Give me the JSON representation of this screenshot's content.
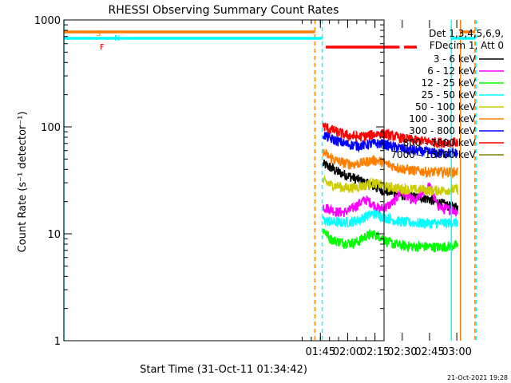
{
  "chart_data": {
    "type": "line",
    "title": "RHESSI Observing Summary Count Rates",
    "xlabel": "Start Time (31-Oct-11 01:34:42)",
    "ylabel": "Count Rate (s⁻¹ detector⁻¹)",
    "y_scale": "log",
    "ylim": [
      1,
      1000
    ],
    "y_ticks": [
      {
        "value": 1,
        "label": "1"
      },
      {
        "value": 10,
        "label": "10"
      },
      {
        "value": 100,
        "label": "100"
      },
      {
        "value": 1000,
        "label": "1000"
      }
    ],
    "x_range_minutes": [
      -36,
      140
    ],
    "x_ticks": [
      {
        "minutes": 105,
        "label": "01:45"
      },
      {
        "minutes": 120,
        "label": "02:00"
      },
      {
        "minutes": 135,
        "label": "02:15"
      },
      {
        "minutes": 150,
        "label": "02:30"
      },
      {
        "minutes": 165,
        "label": "02:45"
      },
      {
        "minutes": 180,
        "label": "03:00"
      }
    ],
    "grid": false,
    "legend_placement": "right",
    "legend_header": [
      "Det 1,3,4,5,6,9,",
      "FDecim 1, Att 0"
    ],
    "footer_date": "21-Oct-2021 19:28",
    "series": [
      {
        "name": "3 - 6 keV",
        "color": "#000000",
        "base": [
          45,
          42,
          38,
          36,
          34,
          32,
          30,
          28,
          26,
          25,
          24,
          23,
          23,
          22,
          22,
          21,
          20,
          19,
          18,
          18
        ]
      },
      {
        "name": "6 - 12 keV",
        "color": "#ff00ff",
        "base": [
          18,
          17,
          16,
          16,
          17,
          19,
          21,
          19,
          17,
          18,
          20,
          25,
          22,
          20,
          24,
          28,
          19,
          17,
          17,
          16
        ]
      },
      {
        "name": "12 - 25 keV",
        "color": "#00ff00",
        "base": [
          11,
          9,
          8.5,
          8.3,
          8.2,
          8.5,
          9.5,
          10,
          9.5,
          8.5,
          8,
          7.8,
          7.7,
          7.6,
          7.6,
          7.6,
          7.5,
          7.6,
          7.7,
          7.8
        ]
      },
      {
        "name": "25 - 50 keV",
        "color": "#00ffff",
        "base": [
          13.5,
          13,
          12.8,
          12.8,
          13,
          13.5,
          14.5,
          15.5,
          15,
          14,
          13.5,
          13,
          12.8,
          12.7,
          12.6,
          12.6,
          12.5,
          12.6,
          12.7,
          12.8
        ]
      },
      {
        "name": "50 - 100 keV",
        "color": "#cccc00",
        "base": [
          31,
          29,
          28,
          27,
          27,
          27.5,
          28.5,
          30,
          29,
          27.5,
          27,
          26.5,
          26,
          26,
          26,
          25.5,
          25.5,
          25.5,
          26,
          26
        ]
      },
      {
        "name": "100 - 300 keV",
        "color": "#ff8000",
        "base": [
          58,
          52,
          48,
          46,
          45,
          45.5,
          47,
          49,
          48,
          45,
          43,
          41,
          40,
          39,
          38.5,
          38,
          38,
          38,
          38,
          38
        ]
      },
      {
        "name": "300 - 800 keV",
        "color": "#0000ff",
        "base": [
          85,
          78,
          74,
          70,
          68,
          67,
          68,
          70,
          70,
          68,
          65,
          63,
          61,
          60,
          59,
          58,
          57,
          57,
          57,
          57
        ]
      },
      {
        "name": "800 - 7000 keV",
        "color": "#ff0000",
        "base": [
          102,
          95,
          90,
          85,
          82,
          81,
          82,
          85,
          87,
          85,
          82,
          79,
          77,
          75,
          74,
          73,
          72,
          72,
          72,
          72
        ]
      },
      {
        "name": "7000 - 15000 keV",
        "color": "#808000",
        "base": []
      }
    ],
    "data_x_range_minutes": [
      106.5,
      180.5
    ],
    "flags": [
      {
        "label": "S",
        "color": "#ff8000",
        "segments": [
          [
            -36,
            102
          ],
          [
            182,
            190
          ]
        ]
      },
      {
        "label": "N",
        "color": "#00ffff",
        "segments": [
          [
            -36,
            106
          ],
          [
            177,
            190
          ]
        ]
      },
      {
        "label": "F",
        "color": "#ff0000",
        "segments": [
          [
            108,
            148.5
          ],
          [
            151,
            158
          ]
        ]
      }
    ],
    "vlines": [
      {
        "minutes": -36,
        "color": "#00ffff",
        "style": "solid"
      },
      {
        "minutes": 102,
        "color": "#ff8000",
        "style": "dashed"
      },
      {
        "minutes": 106,
        "color": "#00ffff",
        "style": "dashed"
      },
      {
        "minutes": 177,
        "color": "#00ffff",
        "style": "solid"
      },
      {
        "minutes": 182,
        "color": "#ff8000",
        "style": "solid"
      },
      {
        "minutes": 190,
        "color": "#ff8000",
        "style": "dashed"
      },
      {
        "minutes": 190.5,
        "color": "#00ffff",
        "style": "dashed"
      }
    ]
  }
}
